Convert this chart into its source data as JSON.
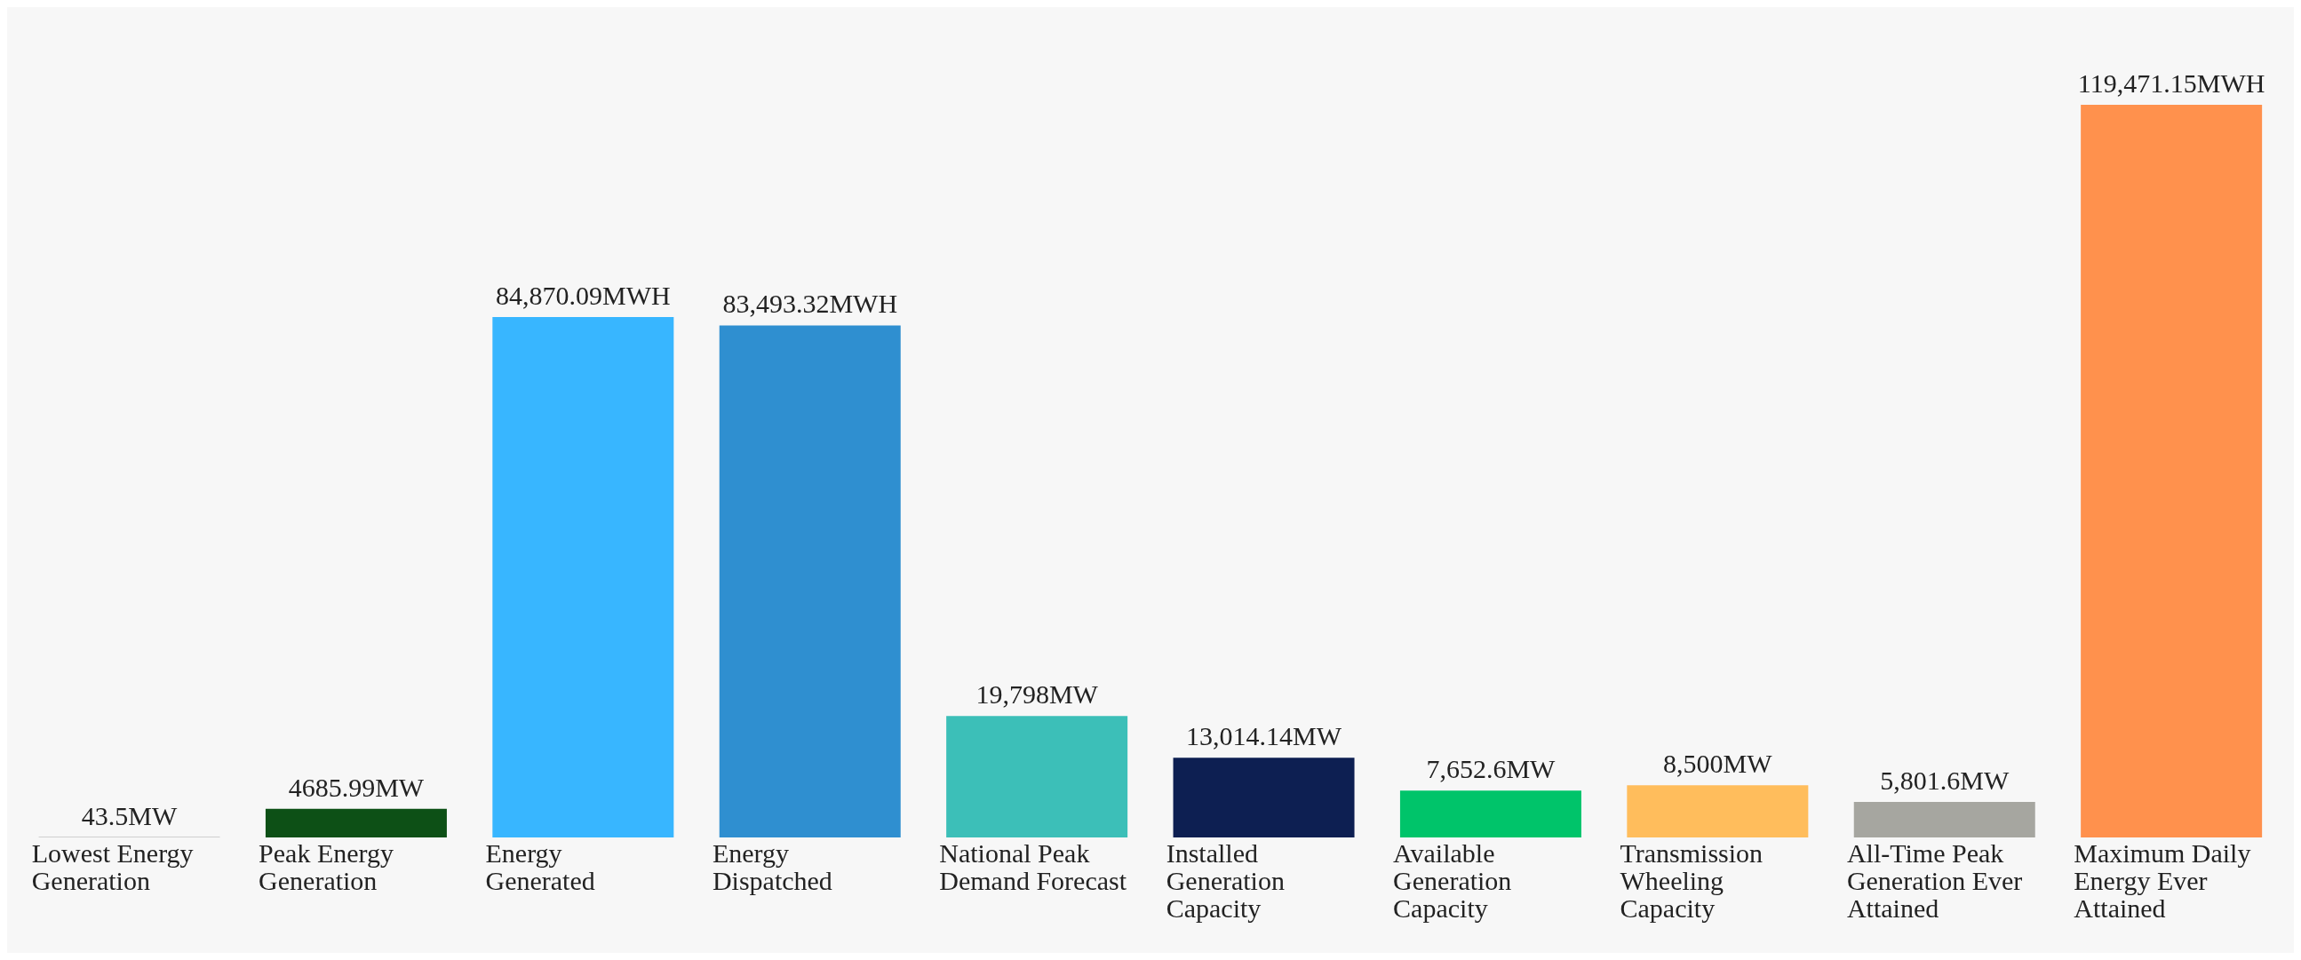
{
  "chart_data": {
    "type": "bar",
    "categories": [
      "Lowest Energy Generation",
      "Peak Energy Generation",
      "Energy Generated",
      "Energy Dispatched",
      "National Peak Demand Forecast",
      "Installed Generation Capacity",
      "Available Generation Capacity",
      "Transmission Wheeling Capacity",
      "All-Time Peak Generation Ever Attained",
      "Maximum Daily Energy Ever Attained"
    ],
    "values": [
      43.5,
      4685.99,
      84870.09,
      83493.32,
      19798,
      13014.14,
      7652.6,
      8500,
      5801.6,
      119471.15
    ],
    "value_labels": [
      "43.5MW",
      "4685.99MW",
      "84,870.09MWH",
      "83,493.32MWH",
      "19,798MW",
      "13,014.14MW",
      "7,652.6MW",
      "8,500MW",
      "5,801.6MW",
      "119,471.15MWH"
    ],
    "colors": [
      "#5a5a5a",
      "#0d5016",
      "#38b6ff",
      "#2f8fd0",
      "#3cbfb8",
      "#0d1f52",
      "#00c46a",
      "#ffbd5c",
      "#a6a6a0",
      "#ff914d"
    ],
    "grid": false,
    "legend": false
  }
}
